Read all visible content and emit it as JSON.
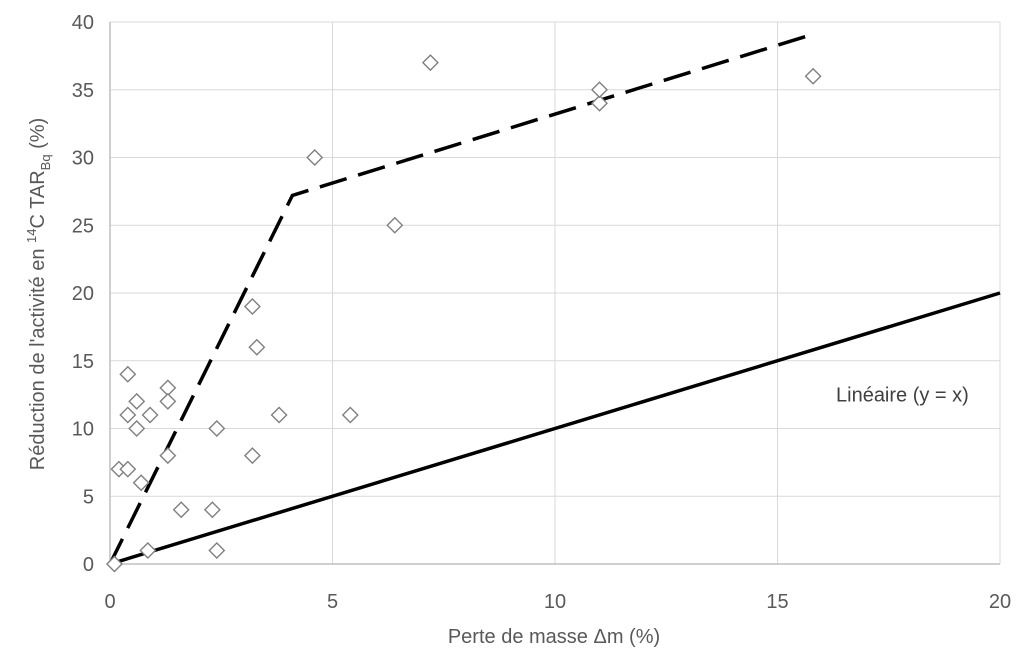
{
  "chart_data": {
    "type": "scatter",
    "title": "",
    "xlabel": "Perte de masse Δm (%)",
    "ylabel": {
      "prefix": "Réduction de l'activité en ",
      "sup": "14",
      "mid": "C TAR",
      "sub": "Bq",
      "suffix": " (%)"
    },
    "xlim": [
      0,
      20
    ],
    "ylim": [
      0,
      40
    ],
    "x_ticks": [
      0,
      5,
      10,
      15,
      20
    ],
    "y_ticks": [
      0,
      5,
      10,
      15,
      20,
      25,
      30,
      35,
      40
    ],
    "grid": true,
    "series": [
      {
        "marker": "diamond",
        "color": "#808080",
        "points": [
          [
            0.1,
            0
          ],
          [
            0.2,
            7
          ],
          [
            0.4,
            7
          ],
          [
            0.4,
            14
          ],
          [
            0.4,
            11
          ],
          [
            0.6,
            12
          ],
          [
            0.6,
            10
          ],
          [
            0.7,
            6
          ],
          [
            0.9,
            11
          ],
          [
            0.85,
            1
          ],
          [
            1.3,
            13
          ],
          [
            1.3,
            12
          ],
          [
            1.3,
            8
          ],
          [
            1.6,
            4
          ],
          [
            2.3,
            4
          ],
          [
            2.4,
            1
          ],
          [
            2.4,
            10
          ],
          [
            3.2,
            19
          ],
          [
            3.3,
            16
          ],
          [
            3.2,
            8
          ],
          [
            3.8,
            11
          ],
          [
            4.6,
            30
          ],
          [
            5.4,
            11
          ],
          [
            6.4,
            25
          ],
          [
            7.2,
            37
          ],
          [
            11.0,
            34
          ],
          [
            11.0,
            35
          ],
          [
            15.8,
            36
          ]
        ]
      },
      {
        "line": "dashed",
        "color": "#000000",
        "points": [
          [
            0,
            0
          ],
          [
            4.1,
            27.2
          ],
          [
            15.7,
            39
          ]
        ]
      },
      {
        "line": "solid",
        "color": "#000000",
        "points": [
          [
            0,
            0
          ],
          [
            20,
            20
          ]
        ]
      }
    ],
    "annotations": [
      {
        "text": "Linéaire (y = x)",
        "x": 19.3,
        "y": 12.5
      }
    ]
  }
}
